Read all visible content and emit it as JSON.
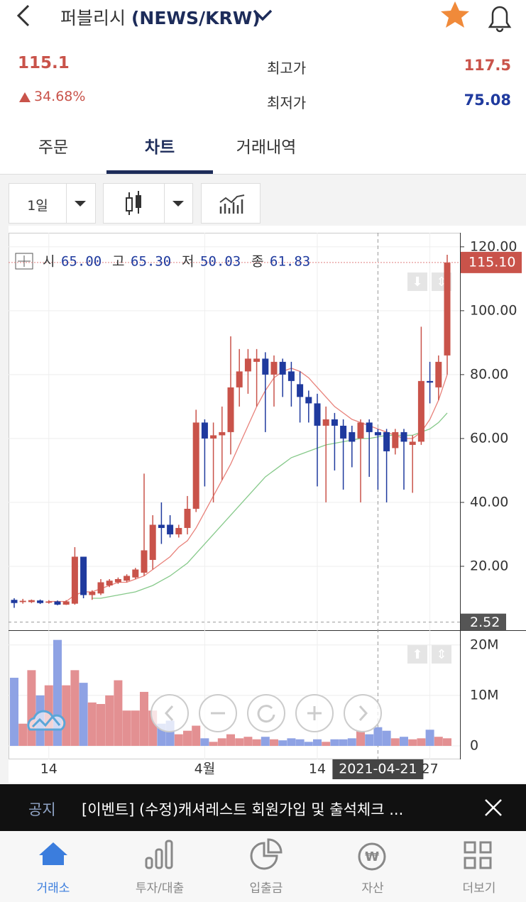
{
  "header": {
    "name": "퍼블리시",
    "pair": "(NEWS/KRW)"
  },
  "price": {
    "current": "115.1",
    "change": "34.68%",
    "high_label": "최고가",
    "high": "117.5",
    "low_label": "최저가",
    "low": "75.08"
  },
  "tabs": [
    "주문",
    "차트",
    "거래내역"
  ],
  "toolbar": {
    "period": "1일"
  },
  "chart": {
    "type": "candlestick",
    "ohlc_info": [
      {
        "label": "시",
        "value": "65.00"
      },
      {
        "label": "고",
        "value": "65.30"
      },
      {
        "label": "저",
        "value": "50.03"
      },
      {
        "label": "종",
        "value": "61.83"
      }
    ],
    "categories": [
      null,
      null,
      null,
      null,
      "14",
      null,
      null,
      null,
      null,
      null,
      null,
      null,
      null,
      null,
      null,
      null,
      null,
      null,
      null,
      null,
      null,
      null,
      "4월",
      null,
      null,
      null,
      null,
      null,
      null,
      null,
      null,
      null,
      null,
      null,
      null,
      "14",
      null,
      null,
      null,
      null,
      null,
      null,
      "2021-04-21",
      null,
      null,
      null,
      null,
      null,
      "27",
      null,
      null
    ],
    "open": [
      9.5,
      8.8,
      8.8,
      9.3,
      8.6,
      9,
      8,
      8.3,
      23,
      11,
      11.5,
      14,
      15,
      15.5,
      16.5,
      18,
      22,
      33,
      33,
      30,
      32,
      38,
      65,
      60,
      61,
      62,
      76,
      81,
      84,
      85,
      80,
      84,
      81,
      77,
      73,
      71,
      64,
      66,
      64,
      62,
      60,
      65,
      62,
      62,
      57,
      62,
      58,
      59,
      78,
      76,
      86
    ],
    "high": [
      10,
      9.8,
      9.6,
      9.6,
      9.4,
      9.3,
      9.4,
      26,
      23,
      12.5,
      16,
      16,
      16.5,
      17.5,
      19.5,
      49,
      36,
      40,
      36,
      33,
      42,
      69,
      66,
      65,
      70,
      92,
      88,
      88,
      88,
      87,
      86,
      85,
      84,
      81,
      75,
      74,
      70,
      68,
      66,
      64,
      66,
      66,
      63,
      63,
      63,
      63,
      61,
      95,
      84,
      86,
      117.5
    ],
    "low": [
      7,
      8.3,
      8.5,
      8.2,
      8.3,
      7.8,
      7.9,
      8,
      10,
      9.5,
      11,
      13.5,
      14.5,
      15,
      16,
      17,
      19,
      27,
      29,
      29,
      30,
      37,
      45,
      40,
      47,
      55,
      70,
      74,
      70,
      62,
      70,
      73,
      70,
      65,
      65,
      45,
      40,
      50,
      44,
      51,
      40,
      48,
      44,
      40,
      55,
      44,
      43,
      58,
      71,
      72,
      80
    ],
    "close": [
      8.5,
      9.2,
      9.4,
      8.5,
      9,
      8,
      9,
      23,
      11,
      12,
      15,
      15.5,
      16,
      17,
      19,
      25,
      33,
      32,
      30,
      32,
      38,
      65,
      60,
      61,
      62,
      76,
      81,
      85,
      85,
      80,
      84,
      80,
      78,
      73,
      71,
      64,
      66,
      64,
      60,
      59,
      65,
      62,
      61,
      56,
      62,
      59,
      59,
      78,
      77.5,
      84,
      115.1
    ],
    "ma": [
      {
        "color": "#e8817a",
        "values": [
          null,
          null,
          null,
          null,
          9,
          9,
          9,
          11,
          12,
          12,
          13,
          14,
          15,
          15,
          16,
          17,
          19,
          21,
          23,
          26,
          28,
          32,
          37,
          42,
          47,
          52,
          58,
          64,
          70,
          75,
          79,
          81,
          82,
          81,
          79,
          76,
          73,
          70,
          68,
          66,
          65,
          64,
          63,
          62,
          61,
          60,
          60,
          62,
          66,
          72,
          80
        ]
      },
      {
        "color": "#86c98a",
        "values": [
          null,
          null,
          null,
          null,
          null,
          null,
          null,
          null,
          null,
          10,
          10,
          10.5,
          11,
          11.5,
          12,
          13,
          14,
          15.5,
          17,
          19,
          21,
          24,
          27,
          30,
          33,
          36,
          39,
          42,
          45,
          48,
          50,
          52,
          54,
          55,
          56,
          57,
          58,
          58.5,
          59,
          59.5,
          60,
          60,
          60.5,
          61,
          61,
          61,
          61,
          62,
          63,
          65,
          68
        ]
      }
    ],
    "up_color": "#c9534a",
    "down_color": "#1f3a9e",
    "ylim": [
      0,
      124.4
    ],
    "yticks": [
      {
        "value": 20,
        "label": "20.00"
      },
      {
        "value": 40,
        "label": "40.00"
      },
      {
        "value": 60,
        "label": "60.00"
      },
      {
        "value": 80,
        "label": "80.00"
      },
      {
        "value": 100,
        "label": "100.00"
      },
      {
        "value": 120,
        "label": "120.00"
      }
    ],
    "last_price": {
      "value": 115.1,
      "label": "115.10"
    },
    "low_mark": 2.52,
    "volume": {
      "values": [
        13.5,
        4.4,
        15,
        10,
        12,
        21,
        12,
        15,
        12.5,
        8.6,
        8.3,
        10,
        13,
        7,
        7,
        10.7,
        7,
        4.4,
        5,
        2.3,
        3,
        4,
        1.5,
        0.8,
        1.5,
        2.3,
        1.5,
        1.8,
        1.3,
        1.8,
        1.3,
        1.1,
        1.5,
        1.3,
        0.8,
        1.3,
        0.8,
        1.3,
        1.3,
        1.5,
        3,
        2.3,
        3.7,
        3,
        1.5,
        1.8,
        1.3,
        1.5,
        3.2,
        1.8,
        1.5
      ],
      "up_color": "#e39092",
      "down_color": "#8ea2e4",
      "ylim": [
        0,
        21.8
      ],
      "yticks": [
        0,
        {
          "value": 10,
          "label": "10M"
        },
        {
          "value": 20,
          "label": "20M"
        }
      ]
    }
  },
  "notice": {
    "tag": "공지",
    "text": "[이벤트] (수정)캐셔레스트 회원가입 및 출석체크 ..."
  },
  "nav": [
    "거래소",
    "투자/대출",
    "입출금",
    "자산",
    "더보기"
  ]
}
